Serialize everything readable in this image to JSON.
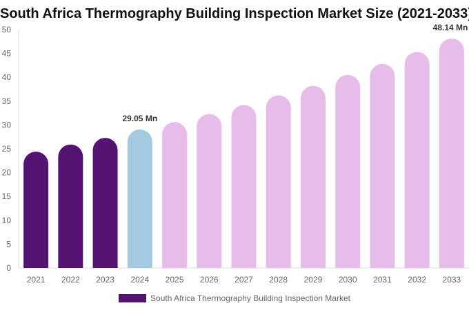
{
  "chart_data": {
    "type": "bar",
    "title": "South Africa Thermography Building Inspection Market Size (2021-2033)",
    "categories": [
      "2021",
      "2022",
      "2023",
      "2024",
      "2025",
      "2026",
      "2027",
      "2028",
      "2029",
      "2030",
      "2031",
      "2032",
      "2033"
    ],
    "series": [
      {
        "name": "South Africa Thermography Building Inspection Market",
        "values": [
          24.4,
          25.9,
          27.3,
          29.05,
          30.6,
          32.3,
          34.2,
          36.2,
          38.2,
          40.5,
          42.8,
          45.3,
          48.14
        ]
      }
    ],
    "data_labels": {
      "3": "29.05 Mn",
      "12": "48.14 Mn"
    },
    "ylim": [
      0,
      50
    ],
    "yticks": [
      0,
      5,
      10,
      15,
      20,
      25,
      30,
      35,
      40,
      45,
      50
    ],
    "bar_colors": [
      "#541371",
      "#541371",
      "#541371",
      "#a3cadf",
      "#e6bce8",
      "#e6bce8",
      "#e6bce8",
      "#e6bce8",
      "#e6bce8",
      "#e6bce8",
      "#e6bce8",
      "#e6bce8",
      "#e6bce8"
    ],
    "legend_color": "#541371",
    "legend_position": "bottom",
    "grid": false,
    "xlabel": "",
    "ylabel": ""
  }
}
